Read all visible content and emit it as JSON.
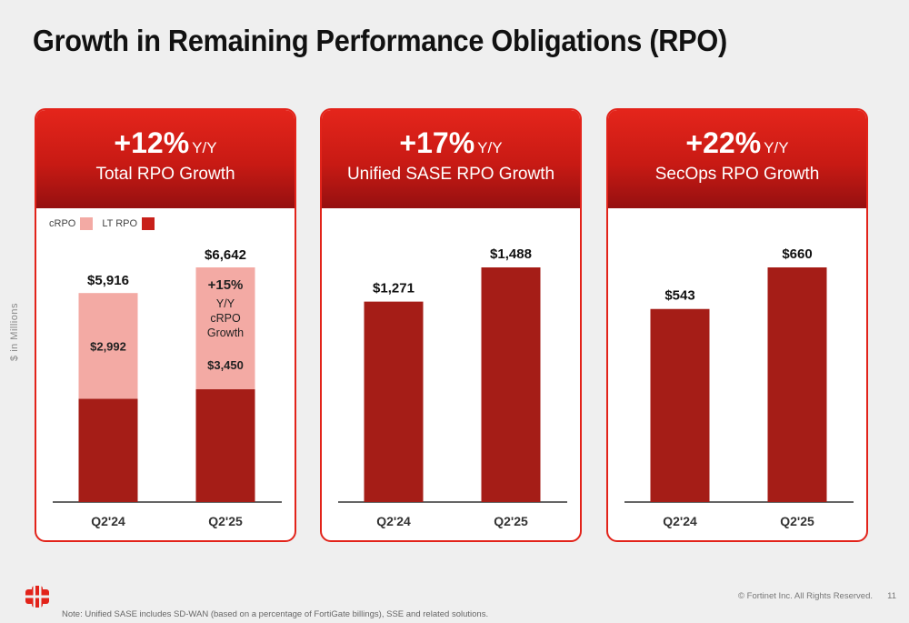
{
  "title": "Growth in Remaining Performance Obligations (RPO)",
  "yaxis_label": "$ in Millions",
  "colors": {
    "crpo": "#f3aaa4",
    "lt_rpo": "#a51d17",
    "bar": "#a51d17",
    "header": "#e2231a"
  },
  "legend": {
    "crpo": "cRPO",
    "lt_rpo": "LT RPO"
  },
  "cards": [
    {
      "pct": "+12%",
      "yy": "Y/Y",
      "subtitle": "Total RPO Growth"
    },
    {
      "pct": "+17%",
      "yy": "Y/Y",
      "subtitle": "Unified SASE RPO Growth"
    },
    {
      "pct": "+22%",
      "yy": "Y/Y",
      "subtitle": "SecOps RPO Growth"
    }
  ],
  "chart_data": [
    {
      "type": "bar",
      "stacked": true,
      "categories": [
        "Q2'24",
        "Q2'25"
      ],
      "series": [
        {
          "name": "LT RPO",
          "values": [
            2924,
            3192
          ]
        },
        {
          "name": "cRPO",
          "values": [
            2992,
            3450
          ],
          "labels": [
            "$2,992",
            "$3,450"
          ]
        }
      ],
      "totals": [
        5916,
        6642
      ],
      "total_labels": [
        "$5,916",
        "$6,642"
      ],
      "annotation": [
        "+15%",
        "Y/Y",
        "cRPO",
        "Growth"
      ]
    },
    {
      "type": "bar",
      "categories": [
        "Q2'24",
        "Q2'25"
      ],
      "values": [
        1271,
        1488
      ],
      "value_labels": [
        "$1,271",
        "$1,488"
      ]
    },
    {
      "type": "bar",
      "categories": [
        "Q2'24",
        "Q2'25"
      ],
      "values": [
        543,
        660
      ],
      "value_labels": [
        "$543",
        "$660"
      ]
    }
  ],
  "footer": {
    "copyright": "© Fortinet Inc. All Rights Reserved.",
    "page": "11",
    "note": "Note: Unified SASE includes SD-WAN (based on a percentage of FortiGate billings), SSE and related solutions."
  }
}
